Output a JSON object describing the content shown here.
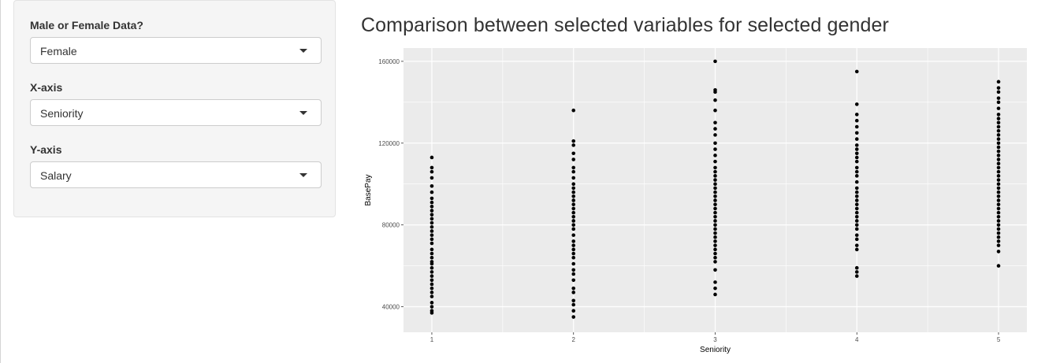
{
  "controls": {
    "gender": {
      "label": "Male or Female Data?",
      "value": "Female"
    },
    "xaxis": {
      "label": "X-axis",
      "value": "Seniority"
    },
    "yaxis": {
      "label": "Y-axis",
      "value": "Salary"
    }
  },
  "main": {
    "title": "Comparison between selected variables for selected gender"
  },
  "colors": {
    "panel_bg": "#ebebeb",
    "grid": "#ffffff",
    "point": "#000000"
  },
  "chart_data": {
    "type": "scatter",
    "xlabel": "Seniority",
    "ylabel": "BasePay",
    "x_ticks": [
      "1",
      "2",
      "3",
      "4",
      "5"
    ],
    "y_ticks": [
      "40000",
      "80000",
      "120000",
      "160000"
    ],
    "xlim": [
      0.8,
      5.2
    ],
    "ylim": [
      27500,
      166500
    ],
    "grid": true,
    "series": [
      {
        "x": 1,
        "y": [
          113000,
          108000,
          106000,
          103000,
          99000,
          96000,
          93000,
          91000,
          89000,
          87000,
          85000,
          83000,
          81000,
          79000,
          77000,
          75000,
          73000,
          71000,
          68000,
          66000,
          64000,
          62000,
          61000,
          59000,
          57000,
          55000,
          53000,
          51000,
          49000,
          47000,
          45000,
          42000,
          40000,
          38000,
          37000
        ]
      },
      {
        "x": 2,
        "y": [
          136000,
          121000,
          119000,
          115000,
          112000,
          108000,
          106000,
          103000,
          100000,
          98000,
          96000,
          94000,
          92000,
          90000,
          88000,
          86000,
          84000,
          82000,
          80000,
          78000,
          75000,
          72000,
          70000,
          68000,
          66000,
          64000,
          61000,
          58000,
          56000,
          53000,
          49000,
          47000,
          43000,
          41000,
          38000,
          35000
        ]
      },
      {
        "x": 3,
        "y": [
          160000,
          146000,
          145000,
          141000,
          136000,
          130000,
          127000,
          124000,
          120000,
          117000,
          114000,
          111000,
          108000,
          106000,
          104000,
          102000,
          100000,
          98000,
          96000,
          94000,
          92000,
          90000,
          88000,
          86000,
          84000,
          82000,
          80000,
          78000,
          76000,
          74000,
          72000,
          70000,
          68000,
          66000,
          64000,
          62000,
          58000,
          52000,
          49000,
          46000
        ]
      },
      {
        "x": 4,
        "y": [
          155000,
          139000,
          134000,
          131000,
          128000,
          125000,
          122000,
          119000,
          117000,
          115000,
          113000,
          111000,
          108000,
          106000,
          104000,
          101000,
          98000,
          96000,
          94000,
          92000,
          90000,
          88000,
          86000,
          84000,
          82000,
          80000,
          78000,
          75000,
          73000,
          70000,
          68000,
          59000,
          57000,
          55000
        ]
      },
      {
        "x": 5,
        "y": [
          150000,
          147000,
          145000,
          142000,
          140000,
          137000,
          134000,
          132000,
          130000,
          128000,
          126000,
          124000,
          122000,
          120000,
          118000,
          116000,
          114000,
          112000,
          110000,
          108000,
          106000,
          104000,
          102000,
          100000,
          98000,
          96000,
          94000,
          92000,
          90000,
          88000,
          86000,
          84000,
          82000,
          80000,
          78000,
          76000,
          74000,
          72000,
          70000,
          67000,
          60000
        ]
      }
    ]
  }
}
